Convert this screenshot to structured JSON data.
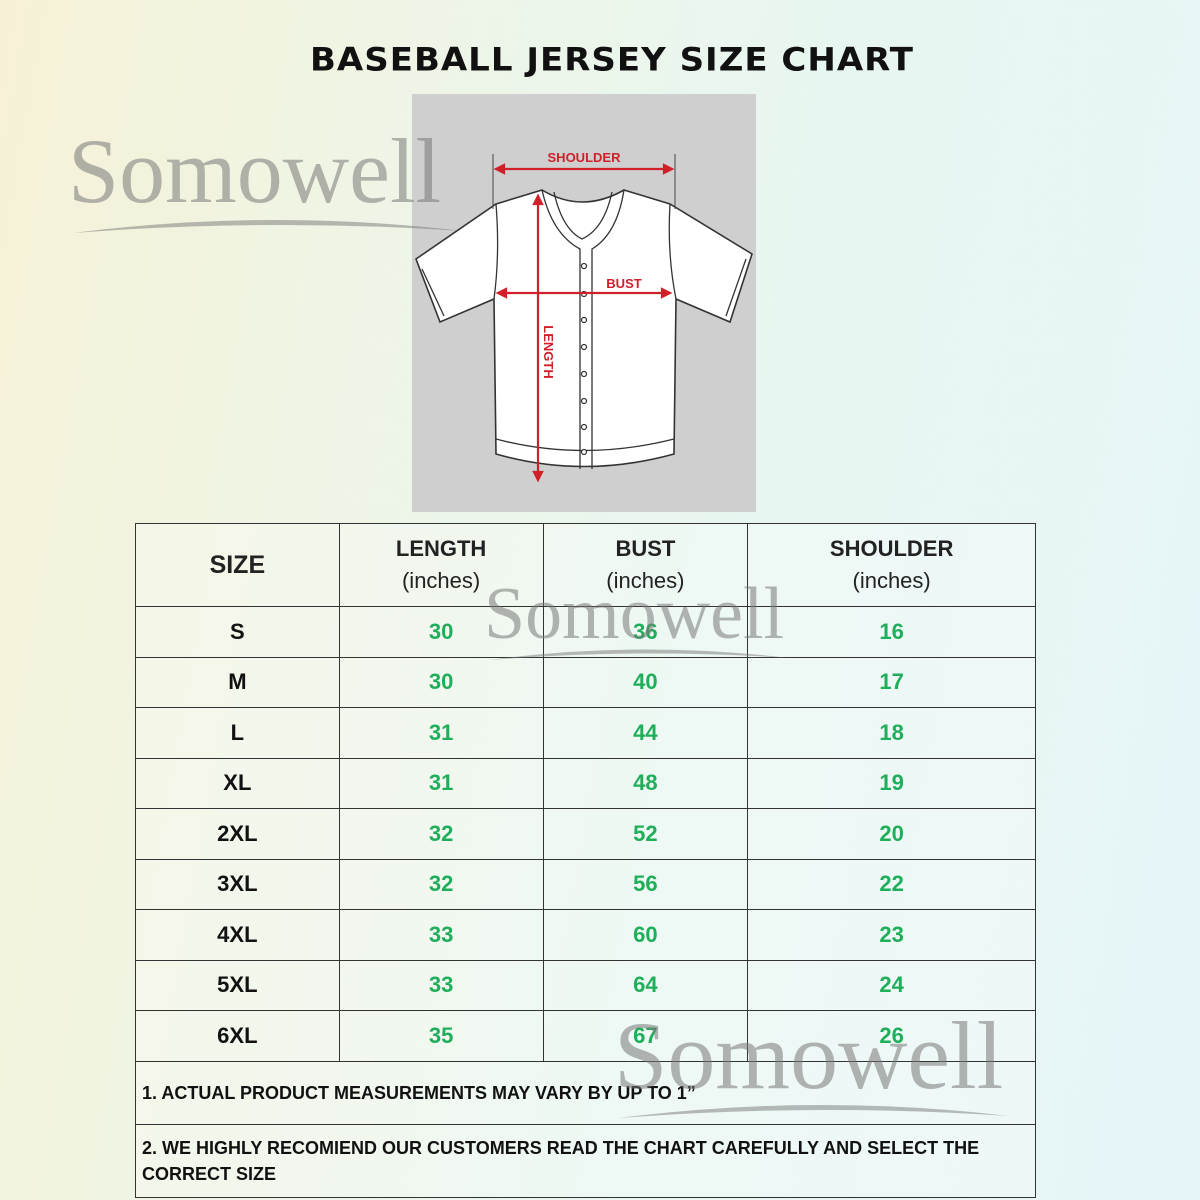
{
  "title": "BASEBALL JERSEY SIZE CHART",
  "watermark": "Somowell",
  "diagram": {
    "labels": {
      "shoulder": "SHOULDER",
      "bust": "BUST",
      "length": "LENGTH"
    }
  },
  "colors": {
    "values": "#1fae5a",
    "arrows": "#d0202a",
    "diagram_bg": "#cfcfcf"
  },
  "chart_data": {
    "type": "table",
    "title": "BASEBALL JERSEY SIZE CHART",
    "headers": [
      {
        "name": "SIZE",
        "unit": ""
      },
      {
        "name": "LENGTH",
        "unit": "(inches)"
      },
      {
        "name": "BUST",
        "unit": "(inches)"
      },
      {
        "name": "SHOULDER",
        "unit": "(inches)"
      }
    ],
    "rows": [
      [
        "S",
        "30",
        "36",
        "16"
      ],
      [
        "M",
        "30",
        "40",
        "17"
      ],
      [
        "L",
        "31",
        "44",
        "18"
      ],
      [
        "XL",
        "31",
        "48",
        "19"
      ],
      [
        "2XL",
        "32",
        "52",
        "20"
      ],
      [
        "3XL",
        "32",
        "56",
        "22"
      ],
      [
        "4XL",
        "33",
        "60",
        "23"
      ],
      [
        "5XL",
        "33",
        "64",
        "24"
      ],
      [
        "6XL",
        "35",
        "67",
        "26"
      ]
    ],
    "notes": [
      "1. ACTUAL PRODUCT MEASUREMENTS MAY VARY BY UP TO 1”",
      "2. WE HIGHLY RECOMIEND OUR CUSTOMERS READ THE CHART CAREFULLY AND SELECT THE CORRECT SIZE"
    ]
  }
}
